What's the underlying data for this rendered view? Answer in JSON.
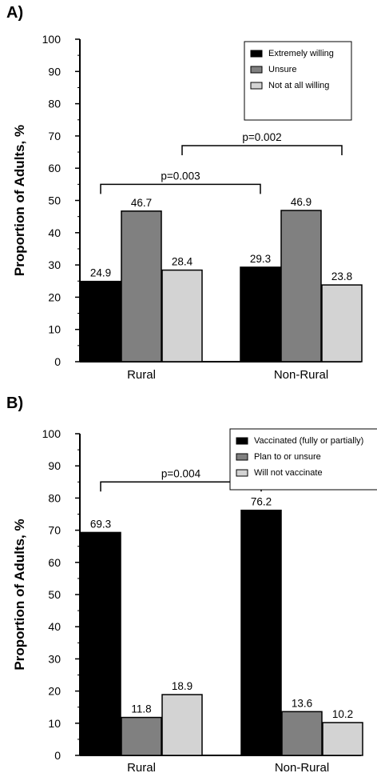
{
  "chart_data": [
    {
      "panel": "A)",
      "type": "bar",
      "categories": [
        "Rural",
        "Non-Rural"
      ],
      "ylabel": "Proportion of Adults, %",
      "ylim": [
        0,
        100
      ],
      "yticks": [
        0,
        10,
        20,
        30,
        40,
        50,
        60,
        70,
        80,
        90,
        100
      ],
      "legend_position": "top-right",
      "grid": false,
      "series": [
        {
          "name": "Extremely willing",
          "color": "#000000",
          "values": [
            24.9,
            29.3
          ],
          "labels": [
            "24.9",
            "29.3"
          ]
        },
        {
          "name": "Unsure",
          "color": "#808080",
          "values": [
            46.7,
            46.9
          ],
          "labels": [
            "46.7",
            "46.9"
          ]
        },
        {
          "name": "Not at all willing",
          "color": "#d3d3d3",
          "values": [
            28.4,
            23.8
          ],
          "labels": [
            "28.4",
            "23.8"
          ]
        }
      ],
      "annotations": [
        {
          "text": "p=0.003",
          "from": [
            "Rural",
            "Extremely willing"
          ],
          "to": [
            "Non-Rural",
            "Extremely willing"
          ],
          "y": 55
        },
        {
          "text": "p=0.002",
          "from": [
            "Rural",
            "Not at all willing"
          ],
          "to": [
            "Non-Rural",
            "Not at all willing"
          ],
          "y": 67
        }
      ]
    },
    {
      "panel": "B)",
      "type": "bar",
      "categories": [
        "Rural",
        "Non-Rural"
      ],
      "ylabel": "Proportion of Adults, %",
      "ylim": [
        0,
        100
      ],
      "yticks": [
        0,
        10,
        20,
        30,
        40,
        50,
        60,
        70,
        80,
        90,
        100
      ],
      "legend_position": "top-right",
      "grid": false,
      "series": [
        {
          "name": "Vaccinated (fully or partially)",
          "color": "#000000",
          "values": [
            69.3,
            76.2
          ],
          "labels": [
            "69.3",
            "76.2"
          ]
        },
        {
          "name": "Plan to or unsure",
          "color": "#808080",
          "values": [
            11.8,
            13.6
          ],
          "labels": [
            "11.8",
            "13.6"
          ]
        },
        {
          "name": "Will not vaccinate",
          "color": "#d3d3d3",
          "values": [
            18.9,
            10.2
          ],
          "labels": [
            "18.9",
            "10.2"
          ]
        }
      ],
      "annotations": [
        {
          "text": "p=0.004",
          "from": [
            "Rural",
            "Vaccinated (fully or partially)"
          ],
          "to": [
            "Non-Rural",
            "Vaccinated (fully or partially)"
          ],
          "y": 85
        }
      ]
    }
  ]
}
